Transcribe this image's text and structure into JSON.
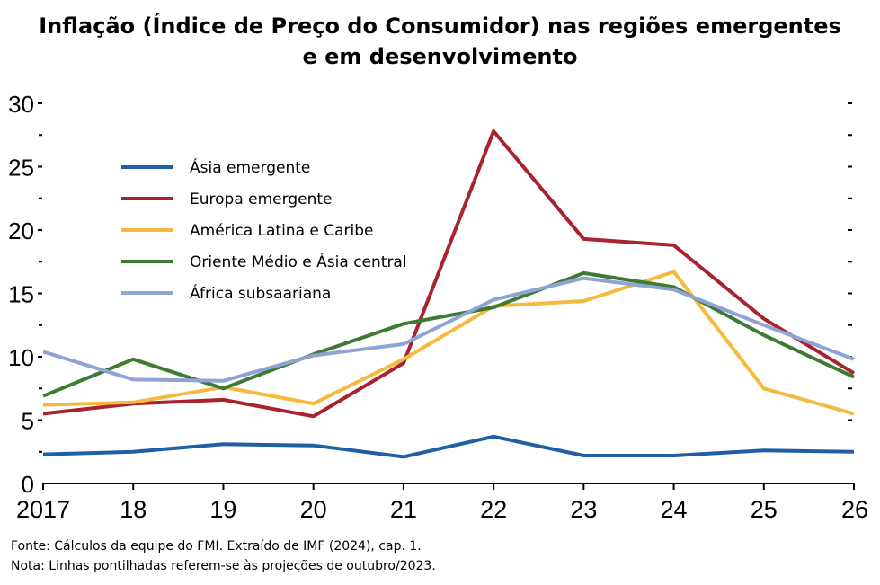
{
  "title": {
    "line1": "Inflação (Índice de Preço do Consumidor) nas regiões emergentes",
    "line2": "e em desenvolvimento"
  },
  "chart_data": {
    "type": "line",
    "x": [
      "2017",
      "18",
      "19",
      "20",
      "21",
      "22",
      "23",
      "24",
      "25",
      "26"
    ],
    "ylim": [
      0,
      30
    ],
    "yticks": [
      "0",
      "5",
      "10",
      "15",
      "20",
      "25",
      "30"
    ],
    "grid": false,
    "legend_position": "top-left",
    "series": [
      {
        "name": "Ásia emergente",
        "color": "#1f5fa6",
        "values": [
          2.3,
          2.5,
          3.1,
          3.0,
          2.1,
          3.7,
          2.2,
          2.2,
          2.6,
          2.5
        ]
      },
      {
        "name": "Europa emergente",
        "color": "#a8232d",
        "values": [
          5.5,
          6.3,
          6.6,
          5.3,
          9.5,
          27.8,
          19.3,
          18.8,
          13.0,
          8.7
        ]
      },
      {
        "name": "América Latina e Caribe",
        "color": "#f5b940",
        "values": [
          6.2,
          6.4,
          7.6,
          6.3,
          9.8,
          14.0,
          14.4,
          16.7,
          7.5,
          5.5
        ]
      },
      {
        "name": "Oriente Médio e Ásia central",
        "color": "#3e7a33",
        "values": [
          6.9,
          9.8,
          7.5,
          10.2,
          12.6,
          13.9,
          16.6,
          15.5,
          11.7,
          8.4
        ]
      },
      {
        "name": "África subsaariana",
        "color": "#8fa3d5",
        "values": [
          10.4,
          8.2,
          8.1,
          10.1,
          11.0,
          14.5,
          16.2,
          15.3,
          12.5,
          9.8
        ]
      }
    ]
  },
  "notes": {
    "source": "Fonte: Cálculos da equipe do FMI. Extraído de IMF (2024), cap. 1.",
    "note": "Nota: Linhas pontilhadas referem-se às projeções de outubro/2023."
  }
}
